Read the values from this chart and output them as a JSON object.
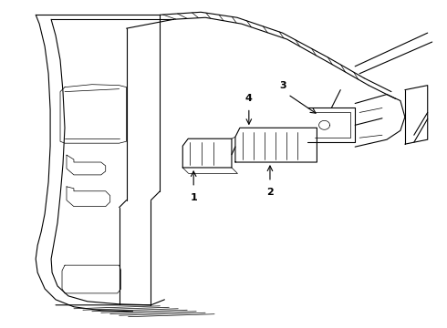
{
  "background_color": "#ffffff",
  "line_color": "#000000",
  "lw": 0.8,
  "tlw": 0.5,
  "label_fontsize": 7
}
